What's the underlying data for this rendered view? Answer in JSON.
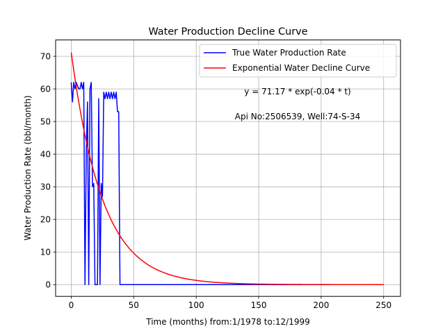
{
  "chart_data": {
    "type": "line",
    "title": "Water Production Decline Curve",
    "xlabel": "Time (months) from:1/1978 to:12/1999",
    "ylabel": "Water Production Rate (bbl/month)",
    "xlim": [
      -12.5,
      263.5
    ],
    "ylim": [
      -3.6,
      75
    ],
    "xticks": [
      0,
      50,
      100,
      150,
      200,
      250
    ],
    "yticks": [
      0,
      10,
      20,
      30,
      40,
      50,
      60,
      70
    ],
    "grid": true,
    "legend_position": "top-right",
    "annotations": [
      "y = 71.17 * exp(-0.04 * t)",
      "Api No:2506539, Well:74-S-34"
    ],
    "series": [
      {
        "name": "True Water Production Rate",
        "color": "#0000ff",
        "x": [
          0,
          1,
          2,
          3,
          4,
          5,
          6,
          7,
          8,
          9,
          10,
          11,
          12,
          13,
          14,
          15,
          16,
          17,
          18,
          19,
          20,
          21,
          22,
          23,
          24,
          25,
          26,
          27,
          28,
          29,
          30,
          31,
          32,
          33,
          34,
          35,
          36,
          37,
          38,
          39,
          40,
          60,
          80,
          100,
          120,
          150,
          200,
          250
        ],
        "y": [
          62,
          56,
          62,
          60,
          62,
          61,
          60,
          60,
          62,
          60,
          62,
          0,
          40,
          56,
          0,
          60,
          62,
          30,
          31,
          0,
          0,
          0,
          57,
          0,
          31,
          27,
          59,
          57,
          59,
          57,
          59,
          57,
          59,
          57,
          59,
          57,
          59,
          53,
          53,
          0,
          0,
          0,
          0,
          0,
          0,
          0,
          0,
          0
        ]
      },
      {
        "name": "Exponential Water Decline Curve",
        "color": "#ff0000",
        "a": 71.17,
        "b": 0.04,
        "x_range": [
          0,
          250
        ]
      }
    ]
  }
}
